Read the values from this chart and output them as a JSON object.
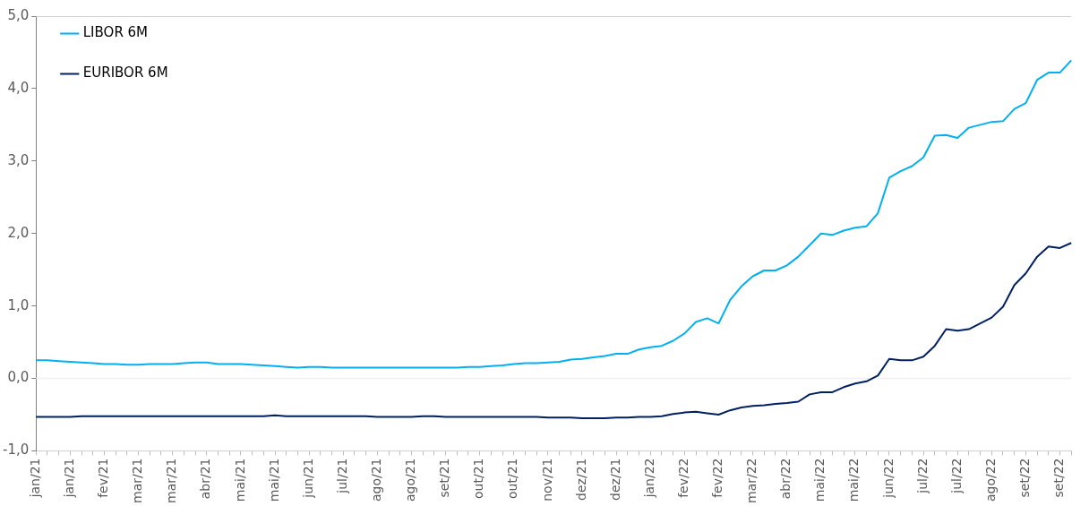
{
  "chart_data": {
    "type": "line",
    "categories": [
      "jan/21",
      null,
      null,
      "jan/21",
      null,
      null,
      "fev/21",
      null,
      null,
      "mar/21",
      null,
      null,
      "mar/21",
      null,
      null,
      "abr/21",
      null,
      null,
      "mai/21",
      null,
      null,
      "mai/21",
      null,
      null,
      "jun/21",
      null,
      null,
      "jul/21",
      null,
      null,
      "ago/21",
      null,
      null,
      "ago/21",
      null,
      null,
      "set/21",
      null,
      null,
      "out/21",
      null,
      null,
      "out/21",
      null,
      null,
      "nov/21",
      null,
      null,
      "dez/21",
      null,
      null,
      "dez/21",
      null,
      null,
      "jan/22",
      null,
      null,
      "fev/22",
      null,
      null,
      "fev/22",
      null,
      null,
      "mar/22",
      null,
      null,
      "abr/22",
      null,
      null,
      "mai/22",
      null,
      null,
      "mai/22",
      null,
      null,
      "jun/22",
      null,
      null,
      "jul/22",
      null,
      null,
      "jul/22",
      null,
      null,
      "ago/22",
      null,
      null,
      "set/22",
      null,
      null,
      "set/22",
      null
    ],
    "series": [
      {
        "name": "LIBOR 6M",
        "color": "#00b0f0",
        "values": [
          0.25,
          0.25,
          0.24,
          0.23,
          0.22,
          0.21,
          0.2,
          0.2,
          0.19,
          0.19,
          0.2,
          0.2,
          0.2,
          0.21,
          0.22,
          0.22,
          0.2,
          0.2,
          0.2,
          0.19,
          0.18,
          0.17,
          0.16,
          0.15,
          0.16,
          0.16,
          0.15,
          0.15,
          0.15,
          0.15,
          0.15,
          0.15,
          0.15,
          0.15,
          0.15,
          0.15,
          0.15,
          0.15,
          0.16,
          0.16,
          0.17,
          0.18,
          0.2,
          0.21,
          0.21,
          0.22,
          0.23,
          0.26,
          0.27,
          0.29,
          0.31,
          0.34,
          0.34,
          0.4,
          0.43,
          0.45,
          0.52,
          0.62,
          0.78,
          0.83,
          0.76,
          1.08,
          1.27,
          1.41,
          1.49,
          1.49,
          1.56,
          1.68,
          1.84,
          2.0,
          1.98,
          2.04,
          2.08,
          2.1,
          2.28,
          2.77,
          2.86,
          2.93,
          3.05,
          3.35,
          3.36,
          3.32,
          3.46,
          3.5,
          3.54,
          3.55,
          3.72,
          3.8,
          4.12,
          4.22,
          4.22,
          4.39
        ]
      },
      {
        "name": "EURIBOR 6M",
        "color": "#002060",
        "values": [
          -0.53,
          -0.53,
          -0.53,
          -0.53,
          -0.52,
          -0.52,
          -0.52,
          -0.52,
          -0.52,
          -0.52,
          -0.52,
          -0.52,
          -0.52,
          -0.52,
          -0.52,
          -0.52,
          -0.52,
          -0.52,
          -0.52,
          -0.52,
          -0.52,
          -0.51,
          -0.52,
          -0.52,
          -0.52,
          -0.52,
          -0.52,
          -0.52,
          -0.52,
          -0.52,
          -0.53,
          -0.53,
          -0.53,
          -0.53,
          -0.52,
          -0.52,
          -0.53,
          -0.53,
          -0.53,
          -0.53,
          -0.53,
          -0.53,
          -0.53,
          -0.53,
          -0.53,
          -0.54,
          -0.54,
          -0.54,
          -0.55,
          -0.55,
          -0.55,
          -0.54,
          -0.54,
          -0.53,
          -0.53,
          -0.52,
          -0.49,
          -0.47,
          -0.46,
          -0.48,
          -0.5,
          -0.44,
          -0.4,
          -0.38,
          -0.37,
          -0.35,
          -0.34,
          -0.32,
          -0.22,
          -0.19,
          -0.19,
          -0.12,
          -0.07,
          -0.04,
          0.04,
          0.27,
          0.25,
          0.25,
          0.3,
          0.45,
          0.68,
          0.66,
          0.68,
          0.76,
          0.84,
          0.99,
          1.29,
          1.45,
          1.68,
          1.82,
          1.8,
          1.87
        ]
      }
    ],
    "ylim": [
      -1,
      5
    ],
    "yticks": [
      {
        "value": -1,
        "label": "-1,0"
      },
      {
        "value": 0,
        "label": "0,0"
      },
      {
        "value": 1,
        "label": "1,0"
      },
      {
        "value": 2,
        "label": "2,0"
      },
      {
        "value": 3,
        "label": "3,0"
      },
      {
        "value": 4,
        "label": "4,0"
      },
      {
        "value": 5,
        "label": "5,0"
      }
    ],
    "ref_lines": [
      {
        "axis": "y",
        "value": 0,
        "color": "#f0f0f0"
      }
    ],
    "grid": false,
    "legend": "top left",
    "marker": "none",
    "line_style": "solid"
  }
}
